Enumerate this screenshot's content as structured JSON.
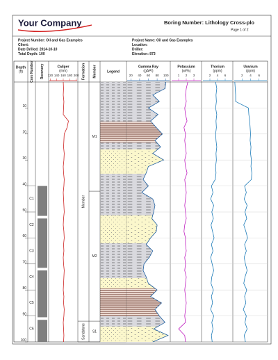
{
  "header": {
    "logo": "Your Company",
    "boring": "Boring Number: Lithology Cross-plo",
    "page": "Page 1 of 2",
    "left": [
      "Project Number: Oil and Gas Examples",
      "Client:",
      "Date Drilled: 2014-10-10",
      "Total Depth: 100"
    ],
    "right": [
      "Project Name: Oil and Gas Examples",
      "Location:",
      "Driller:",
      "Elevation: 873"
    ]
  },
  "log": {
    "depth_label": "Depth",
    "depth_unit": "(ft)",
    "core_label": "Core Number",
    "recovery_label": "Recovery",
    "formation_label": "Formation",
    "member_label": "Member",
    "legend_label": "Legend",
    "depth_lim": [
      0,
      100
    ],
    "depth_ticks": [
      10,
      20,
      30,
      40,
      50,
      60,
      70,
      80,
      90,
      100
    ],
    "cores": [
      {
        "label": "C1",
        "top": 40,
        "bottom": 50
      },
      {
        "label": "C2",
        "top": 50,
        "bottom": 60
      },
      {
        "label": "C3",
        "top": 60,
        "bottom": 70
      },
      {
        "label": "C4",
        "top": 70,
        "bottom": 80
      },
      {
        "label": "C5",
        "top": 80,
        "bottom": 90
      },
      {
        "label": "C6",
        "top": 90,
        "bottom": 100
      }
    ],
    "recovery": [
      [
        40,
        51.5
      ],
      [
        52.5,
        71.5
      ],
      [
        72.5,
        90.5
      ],
      [
        91.5,
        100
      ]
    ],
    "formations": [
      {
        "label": "Member",
        "top": 0,
        "bottom": 92
      },
      {
        "label": "Sandstone",
        "top": 92,
        "bottom": 100
      }
    ],
    "members": [
      {
        "label": "M1",
        "top": 0,
        "bottom": 42
      },
      {
        "label": "M2",
        "top": 42,
        "bottom": 92
      },
      {
        "label": "S1",
        "top": 92,
        "bottom": 100
      }
    ],
    "depth": [
      0,
      2.5,
      5,
      7.5,
      10,
      12.5,
      15,
      17.5,
      20,
      22.5,
      25,
      27.5,
      30,
      32.5,
      35,
      37.5,
      40,
      42.5,
      45,
      47.5,
      50,
      52.5,
      55,
      57.5,
      60,
      62.5,
      65,
      67.5,
      70,
      72.5,
      75,
      77.5,
      80,
      82.5,
      85,
      87.5,
      90,
      92.5,
      95,
      97.5,
      100
    ],
    "tracks": [
      {
        "name": "Caliper",
        "unit": "(mm)",
        "color": "#cc2222",
        "xlim": [
          115,
          205
        ],
        "xticks": [
          120,
          140,
          160,
          180,
          200
        ],
        "values": [
          160,
          161,
          160,
          162,
          161,
          160,
          176,
          172,
          163,
          162,
          161,
          163,
          162,
          160,
          161,
          163,
          162,
          160,
          161,
          162,
          163,
          161,
          160,
          162,
          163,
          161,
          162,
          160,
          161,
          163,
          162,
          161,
          160,
          162,
          161,
          163,
          162,
          160,
          161,
          162,
          161
        ]
      },
      {
        "name": "Gamma Ray",
        "unit": "(gAPI)",
        "color": "#1f5fa0",
        "xlim": [
          10,
          110
        ],
        "xticks": [
          20,
          40,
          60,
          80,
          100
        ],
        "values": [
          100,
          98,
          70,
          85,
          60,
          82,
          65,
          78,
          92,
          75,
          88,
          70,
          95,
          60,
          55,
          48,
          60,
          45,
          70,
          75,
          72,
          68,
          80,
          78,
          65,
          55,
          70,
          62,
          50,
          48,
          55,
          60,
          80,
          65,
          90,
          75,
          85,
          98,
          72,
          105,
          70
        ]
      },
      {
        "name": "Potassium",
        "unit": "(wt%)",
        "color": "#c020c0",
        "xlim": [
          0,
          4
        ],
        "xticks": [
          1,
          2,
          3
        ],
        "values": [
          2.2,
          2.0,
          1.9,
          2.0,
          1.8,
          1.9,
          2.1,
          1.7,
          1.9,
          1.8,
          1.9,
          2.0,
          1.8,
          1.9,
          2.1,
          1.8,
          1.9,
          2.0,
          1.9,
          1.8,
          1.9,
          2.0,
          1.8,
          1.7,
          1.9,
          1.9,
          2.0,
          1.8,
          1.9,
          1.8,
          2.0,
          1.9,
          1.8,
          1.9,
          2.0,
          1.9,
          1.8,
          1.9,
          1.0,
          1.8,
          1.9
        ]
      },
      {
        "name": "Thorium",
        "unit": "(ppm)",
        "color": "#1c7bb8",
        "xlim": [
          0,
          8
        ],
        "xticks": [
          2,
          4,
          6
        ],
        "values": [
          3.5,
          3.8,
          3.6,
          3.7,
          3.5,
          3.8,
          3.6,
          3.7,
          3.5,
          3.6,
          3.8,
          3.6,
          3.7,
          3.5,
          3.6,
          3.4,
          2.4,
          2.8,
          2.2,
          3.0,
          2.5,
          2.9,
          2.3,
          2.7,
          3.1,
          2.4,
          2.8,
          2.2,
          2.6,
          3.0,
          2.5,
          2.3,
          2.9,
          2.4,
          2.7,
          2.2,
          3.0,
          2.5,
          2.8,
          2.4,
          2.6
        ]
      },
      {
        "name": "Uranium",
        "unit": "(ppm)",
        "color": "#1c7bb8",
        "xlim": [
          0,
          8
        ],
        "xticks": [
          2,
          4,
          6
        ],
        "values": [
          0.3,
          0.4,
          0.5,
          0.5,
          3.5,
          3.6,
          3.8,
          3.9,
          4.0,
          3.9,
          4.1,
          4.0,
          4.2,
          4.1,
          4.3,
          4.2,
          2.6,
          3.0,
          2.5,
          3.2,
          2.7,
          3.1,
          2.4,
          2.9,
          3.3,
          2.6,
          3.0,
          2.5,
          2.8,
          3.2,
          2.7,
          2.4,
          3.1,
          2.6,
          2.9,
          2.3,
          3.0,
          2.7,
          3.2,
          2.5,
          2.8
        ]
      }
    ]
  }
}
